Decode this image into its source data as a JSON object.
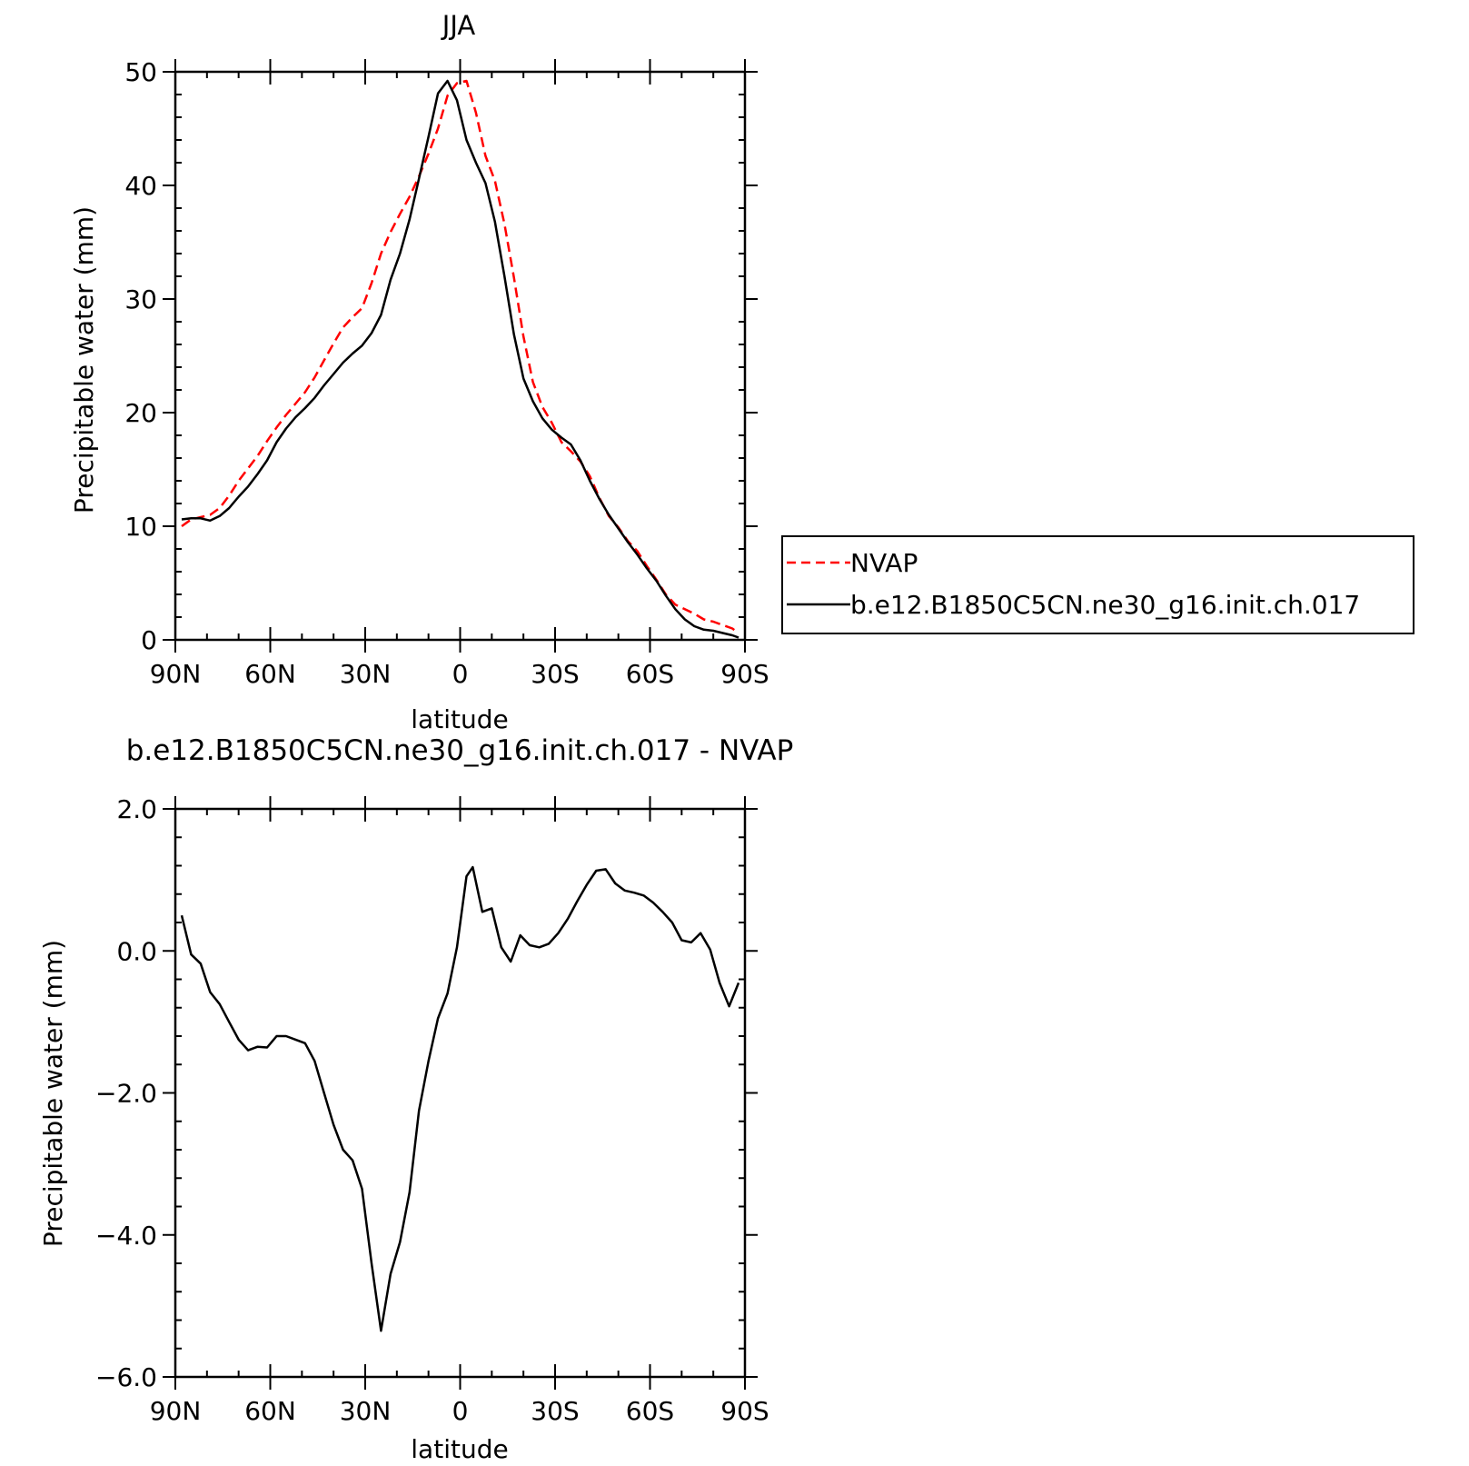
{
  "chart_data": [
    {
      "type": "line",
      "title": "JJA",
      "xlabel": "latitude",
      "ylabel": "Precipitable water (mm)",
      "xlim": [
        90,
        -90
      ],
      "ylim": [
        0,
        50
      ],
      "xticks": [
        90,
        60,
        30,
        0,
        -30,
        -60,
        -90
      ],
      "xtick_labels": [
        "90N",
        "60N",
        "30N",
        "0",
        "30S",
        "60S",
        "90S"
      ],
      "yticks": [
        0,
        10,
        20,
        30,
        40,
        50
      ],
      "ytick_labels": [
        "0",
        "10",
        "20",
        "30",
        "40",
        "50"
      ],
      "legend": {
        "placement": "right-outside"
      },
      "series": [
        {
          "name": "NVAP",
          "color": "#ff0000",
          "dash": "dashed",
          "x": [
            88,
            85,
            82,
            79,
            76,
            73,
            70,
            67,
            64,
            61,
            58,
            55,
            52,
            49,
            46,
            43,
            40,
            37,
            34,
            31,
            28,
            25,
            22,
            19,
            16,
            13,
            10,
            7,
            4,
            1,
            -2,
            -5,
            -8,
            -11,
            -14,
            -17,
            -20,
            -23,
            -26,
            -29,
            -32,
            -35,
            -38,
            -41,
            -44,
            -47,
            -50,
            -53,
            -56,
            -59,
            -62,
            -65,
            -68,
            -71,
            -74,
            -77,
            -80,
            -83,
            -86,
            -88
          ],
          "y": [
            10.0,
            10.6,
            10.8,
            11.0,
            11.6,
            12.7,
            14.0,
            15.1,
            16.2,
            17.5,
            18.7,
            19.8,
            20.8,
            21.8,
            23.1,
            24.6,
            26.1,
            27.5,
            28.4,
            29.2,
            31.4,
            34.0,
            35.9,
            37.5,
            39.0,
            40.8,
            42.8,
            45.0,
            47.9,
            49.0,
            49.2,
            46.4,
            42.6,
            40.4,
            36.6,
            31.9,
            26.7,
            22.7,
            20.5,
            19.1,
            17.4,
            16.6,
            15.7,
            14.4,
            12.5,
            10.9,
            9.9,
            8.7,
            7.8,
            6.5,
            5.3,
            4.0,
            3.1,
            2.7,
            2.3,
            1.8,
            1.6,
            1.3,
            1.0,
            0.6
          ]
        },
        {
          "name": "b.e12.B1850C5CN.ne30_g16.init.ch.017",
          "color": "#000000",
          "dash": "solid",
          "x": [
            88,
            85,
            82,
            79,
            76,
            73,
            70,
            67,
            64,
            61,
            58,
            55,
            52,
            49,
            46,
            43,
            40,
            37,
            34,
            31,
            28,
            25,
            22,
            19,
            16,
            13,
            10,
            7,
            4,
            1,
            -2,
            -5,
            -8,
            -11,
            -14,
            -17,
            -20,
            -23,
            -26,
            -29,
            -32,
            -35,
            -38,
            -41,
            -44,
            -47,
            -50,
            -53,
            -56,
            -59,
            -62,
            -65,
            -68,
            -71,
            -74,
            -77,
            -80,
            -83,
            -86,
            -88
          ],
          "y": [
            10.6,
            10.7,
            10.7,
            10.5,
            10.9,
            11.6,
            12.6,
            13.5,
            14.6,
            15.8,
            17.4,
            18.6,
            19.6,
            20.4,
            21.3,
            22.4,
            23.4,
            24.4,
            25.2,
            25.9,
            27.0,
            28.6,
            31.7,
            34.0,
            37.0,
            40.6,
            44.3,
            48.1,
            49.2,
            47.5,
            44.0,
            42.0,
            40.2,
            36.8,
            32.0,
            26.9,
            23.0,
            21.0,
            19.5,
            18.5,
            17.8,
            17.2,
            15.8,
            14.0,
            12.4,
            11.0,
            9.8,
            8.6,
            7.5,
            6.3,
            5.2,
            3.9,
            2.7,
            1.8,
            1.2,
            0.9,
            0.8,
            0.6,
            0.4,
            0.2
          ]
        }
      ]
    },
    {
      "type": "line",
      "title": "b.e12.B1850C5CN.ne30_g16.init.ch.017 - NVAP",
      "xlabel": "latitude",
      "ylabel": "Precipitable water (mm)",
      "xlim": [
        90,
        -90
      ],
      "ylim": [
        -6.0,
        2.0
      ],
      "xticks": [
        90,
        60,
        30,
        0,
        -30,
        -60,
        -90
      ],
      "xtick_labels": [
        "90N",
        "60N",
        "30N",
        "0",
        "30S",
        "60S",
        "90S"
      ],
      "yticks": [
        -6,
        -4,
        -2,
        0,
        2
      ],
      "ytick_labels": [
        "−6.0",
        "−4.0",
        "−2.0",
        "0.0",
        "2.0"
      ],
      "series": [
        {
          "color": "#000000",
          "dash": "solid",
          "x": [
            88,
            85,
            82,
            79,
            76,
            73,
            70,
            67,
            64,
            61,
            58,
            55,
            52,
            49,
            46,
            43,
            40,
            37,
            34,
            31,
            28,
            25,
            22,
            19,
            16,
            13,
            10,
            7,
            4,
            1,
            -2,
            -4,
            -7,
            -10,
            -13,
            -16,
            -19,
            -22,
            -25,
            -28,
            -31,
            -34,
            -37,
            -40,
            -43,
            -46,
            -49,
            -52,
            -55,
            -58,
            -61,
            -64,
            -67,
            -70,
            -73,
            -76,
            -79,
            -82,
            -85,
            -88
          ],
          "y": [
            0.5,
            -0.05,
            -0.18,
            -0.58,
            -0.75,
            -1.0,
            -1.25,
            -1.4,
            -1.35,
            -1.36,
            -1.2,
            -1.2,
            -1.25,
            -1.3,
            -1.55,
            -2.0,
            -2.45,
            -2.8,
            -2.95,
            -3.35,
            -4.4,
            -5.35,
            -4.55,
            -4.1,
            -3.4,
            -2.25,
            -1.55,
            -0.95,
            -0.6,
            0.05,
            1.05,
            1.18,
            0.55,
            0.6,
            0.05,
            -0.15,
            0.22,
            0.08,
            0.05,
            0.1,
            0.25,
            0.45,
            0.7,
            0.93,
            1.13,
            1.15,
            0.95,
            0.85,
            0.82,
            0.78,
            0.68,
            0.55,
            0.4,
            0.15,
            0.12,
            0.25,
            0.02,
            -0.45,
            -0.78,
            -0.45
          ]
        }
      ]
    }
  ]
}
